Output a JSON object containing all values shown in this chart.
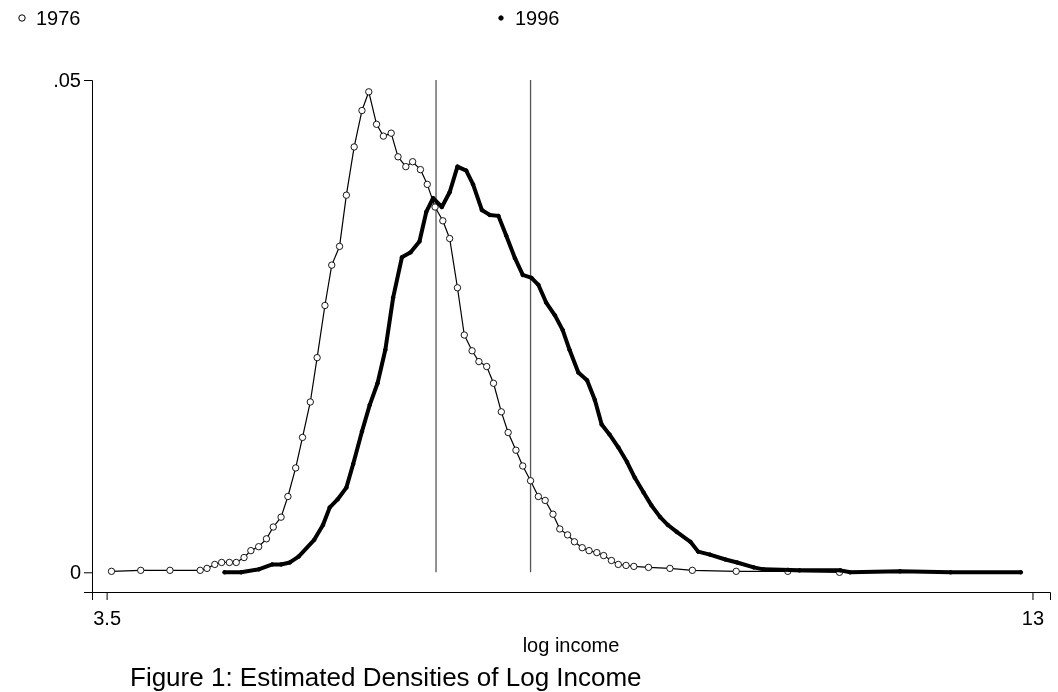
{
  "chart_data": {
    "type": "line",
    "title": "Figure 1: Estimated Densities of Log Income",
    "xlabel": "log income",
    "xlim": [
      3.35,
      13.18
    ],
    "ylim": [
      -0.002,
      0.05
    ],
    "xticks": [
      3.5,
      13
    ],
    "yticks": [
      0,
      {
        "value": 0.05,
        "label": ".05"
      }
    ],
    "grid": false,
    "legend": "top",
    "marker": "circle",
    "ref_lines": [
      {
        "axis": "x",
        "value": 6.88,
        "color": "#555555"
      },
      {
        "axis": "x",
        "value": 7.85,
        "color": "#555555"
      }
    ],
    "series": [
      {
        "name": "1976",
        "color": "#000000",
        "x": [
          3.55,
          3.85,
          4.15,
          4.46,
          4.53,
          4.61,
          4.68,
          4.76,
          4.83,
          4.91,
          4.98,
          5.06,
          5.14,
          5.21,
          5.29,
          5.36,
          5.44,
          5.51,
          5.59,
          5.66,
          5.74,
          5.81,
          5.89,
          5.96,
          6.04,
          6.12,
          6.19,
          6.27,
          6.34,
          6.42,
          6.49,
          6.57,
          6.64,
          6.72,
          6.79,
          6.87,
          6.95,
          7.02,
          7.1,
          7.17,
          7.25,
          7.32,
          7.4,
          7.47,
          7.55,
          7.62,
          7.7,
          7.77,
          7.85,
          7.93,
          8.0,
          8.08,
          8.15,
          8.23,
          8.3,
          8.38,
          8.45,
          8.53,
          8.6,
          8.68,
          8.75,
          8.83,
          8.91,
          9.06,
          9.28,
          9.51,
          9.96,
          10.49,
          11.02
        ],
        "values": [
          0.0001,
          0.0002,
          0.0002,
          0.0002,
          0.0004,
          0.0008,
          0.001,
          0.001,
          0.001,
          0.0015,
          0.0022,
          0.0026,
          0.0034,
          0.0046,
          0.0056,
          0.0077,
          0.0106,
          0.0137,
          0.0173,
          0.0218,
          0.0271,
          0.0312,
          0.0331,
          0.0383,
          0.0432,
          0.0469,
          0.0488,
          0.0455,
          0.0443,
          0.0446,
          0.0422,
          0.0412,
          0.0417,
          0.0409,
          0.0394,
          0.0371,
          0.0357,
          0.0339,
          0.0289,
          0.0241,
          0.0225,
          0.0214,
          0.0209,
          0.0192,
          0.0163,
          0.0142,
          0.0124,
          0.0108,
          0.0093,
          0.0077,
          0.0073,
          0.0059,
          0.0044,
          0.0038,
          0.0031,
          0.0025,
          0.0022,
          0.002,
          0.0017,
          0.0012,
          0.0008,
          0.0007,
          0.0006,
          0.0005,
          0.0004,
          0.0002,
          0.0001,
          0.0001,
          0
        ]
      },
      {
        "name": "1996",
        "color": "#000000",
        "x": [
          4.71,
          4.88,
          5.06,
          5.2,
          5.29,
          5.38,
          5.47,
          5.63,
          5.72,
          5.79,
          5.87,
          5.96,
          6.03,
          6.12,
          6.2,
          6.28,
          6.36,
          6.44,
          6.53,
          6.62,
          6.71,
          6.78,
          6.85,
          6.94,
          7.02,
          7.1,
          7.19,
          7.26,
          7.35,
          7.43,
          7.52,
          7.6,
          7.69,
          7.77,
          7.86,
          7.93,
          8.01,
          8.1,
          8.18,
          8.25,
          8.34,
          8.43,
          8.51,
          8.58,
          8.66,
          8.75,
          8.84,
          8.92,
          9.01,
          9.09,
          9.18,
          9.26,
          9.35,
          9.49,
          9.57,
          9.69,
          9.85,
          9.97,
          10.14,
          10.24,
          10.61,
          11.03,
          11.13,
          11.64,
          12.16,
          12.88
        ],
        "values": [
          0,
          0,
          0.0003,
          0.0008,
          0.0008,
          0.001,
          0.0016,
          0.0033,
          0.0048,
          0.0066,
          0.0074,
          0.0086,
          0.011,
          0.0143,
          0.017,
          0.0192,
          0.0226,
          0.0279,
          0.032,
          0.0325,
          0.0336,
          0.0366,
          0.038,
          0.0371,
          0.0386,
          0.0412,
          0.0408,
          0.0394,
          0.0368,
          0.0363,
          0.0362,
          0.0342,
          0.0319,
          0.0302,
          0.0299,
          0.0292,
          0.0274,
          0.0261,
          0.0246,
          0.0226,
          0.0203,
          0.0195,
          0.0175,
          0.015,
          0.014,
          0.0127,
          0.0112,
          0.0096,
          0.0081,
          0.0068,
          0.0056,
          0.0048,
          0.0041,
          0.0031,
          0.0021,
          0.0018,
          0.0013,
          0.001,
          0.0005,
          0.0003,
          0.0002,
          0.0002,
          0,
          0.0001,
          0,
          0
        ]
      }
    ]
  }
}
